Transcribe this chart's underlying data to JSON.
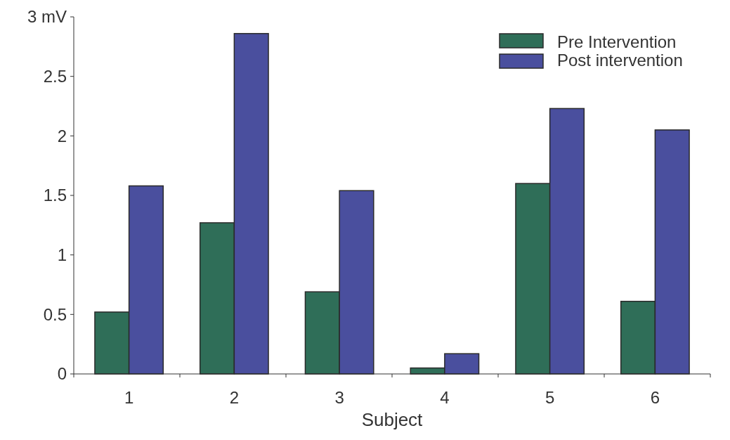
{
  "chart_data": {
    "type": "bar",
    "xlabel": "Subject",
    "categories": [
      "1",
      "2",
      "3",
      "4",
      "5",
      "6"
    ],
    "series": [
      {
        "name": "Pre Intervention",
        "color": "#2f6e58",
        "values": [
          0.52,
          1.27,
          0.69,
          0.05,
          1.6,
          0.61
        ]
      },
      {
        "name": "Post intervention",
        "color": "#4a4f9e",
        "values": [
          1.58,
          2.86,
          1.54,
          0.17,
          2.23,
          2.05
        ]
      }
    ],
    "ylim": [
      0,
      3
    ],
    "yticks": [
      0,
      0.5,
      1,
      1.5,
      2,
      2.5,
      {
        "value": 3,
        "label": "3 mV"
      }
    ],
    "grid": false,
    "legend": "top right"
  }
}
